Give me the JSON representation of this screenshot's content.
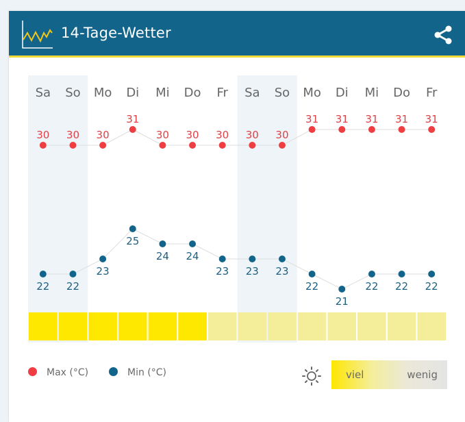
{
  "header": {
    "title": "14-Tage-Wetter",
    "icon": "line-chart-icon",
    "share_icon": "share-icon",
    "background_color": "#12648a",
    "accent_color": "#f0d83a"
  },
  "days": [
    "Sa",
    "So",
    "Mo",
    "Di",
    "Mi",
    "Do",
    "Fr",
    "Sa",
    "So",
    "Mo",
    "Di",
    "Mi",
    "Do",
    "Fr"
  ],
  "weekend_columns": [
    [
      0,
      1
    ],
    [
      7,
      8
    ]
  ],
  "max_temps": [
    "30",
    "30",
    "30",
    "31",
    "30",
    "30",
    "30",
    "30",
    "30",
    "31",
    "31",
    "31",
    "31",
    "31"
  ],
  "min_temps": [
    "22",
    "22",
    "23",
    "25",
    "24",
    "24",
    "23",
    "23",
    "23",
    "22",
    "21",
    "22",
    "22",
    "22"
  ],
  "sunshine": [
    "viel",
    "viel",
    "viel",
    "viel",
    "viel",
    "viel",
    "wenig",
    "wenig",
    "wenig",
    "wenig",
    "wenig",
    "wenig",
    "wenig",
    "wenig"
  ],
  "legend": {
    "max_label": "Max (°C)",
    "min_label": "Min (°C)",
    "max_color": "#ef3e42",
    "min_color": "#12648a",
    "sun_icon": "sun-icon",
    "sun_high": "viel",
    "sun_low": "wenig"
  },
  "chart_data": {
    "type": "line",
    "title": "14-Tage-Wetter",
    "categories": [
      "Sa",
      "So",
      "Mo",
      "Di",
      "Mi",
      "Do",
      "Fr",
      "Sa",
      "So",
      "Mo",
      "Di",
      "Mi",
      "Do",
      "Fr"
    ],
    "series": [
      {
        "name": "Max (°C)",
        "color": "#ef3e42",
        "values": [
          30,
          30,
          30,
          31,
          30,
          30,
          30,
          30,
          30,
          31,
          31,
          31,
          31,
          31
        ]
      },
      {
        "name": "Min (°C)",
        "color": "#12648a",
        "values": [
          22,
          22,
          23,
          25,
          24,
          24,
          23,
          23,
          23,
          22,
          21,
          22,
          22,
          22
        ]
      }
    ],
    "sunshine_bar": {
      "legend": [
        "viel",
        "wenig"
      ],
      "levels": [
        "high",
        "high",
        "high",
        "high",
        "high",
        "high",
        "low",
        "low",
        "low",
        "low",
        "low",
        "low",
        "low",
        "low"
      ],
      "colors": {
        "high": "#ffe800",
        "low": "#f4ee9a"
      }
    },
    "xlabel": "",
    "ylabel": "",
    "grid": false,
    "legend_position": "bottom"
  }
}
